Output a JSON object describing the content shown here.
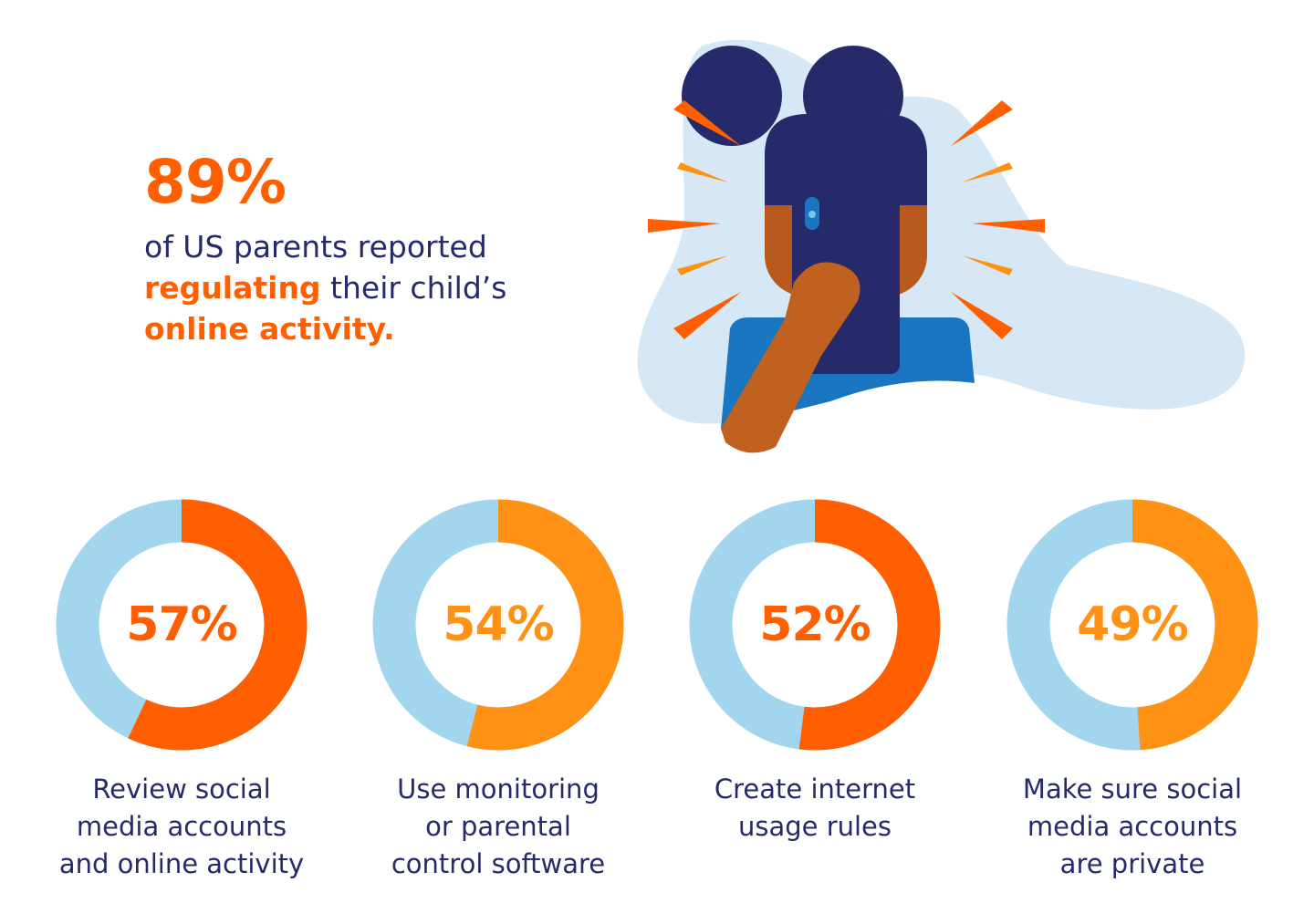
{
  "headline": {
    "value": "89%",
    "line1": "of US parents reported",
    "highlight1": "regulating",
    "line2_rest": " their child’s",
    "highlight2": "online activity."
  },
  "colors": {
    "orange": "#ff5f00",
    "amber": "#ff9214",
    "light_blue": "#a2d6ef",
    "navy": "#262a6b"
  },
  "chart_data": [
    {
      "type": "pie",
      "variant": "donut",
      "value": 57,
      "label": "57%",
      "caption": "Review social media accounts and online activity",
      "color": "#ff5f00"
    },
    {
      "type": "pie",
      "variant": "donut",
      "value": 54,
      "label": "54%",
      "caption": "Use monitoring or parental control software",
      "color": "#ff9214"
    },
    {
      "type": "pie",
      "variant": "donut",
      "value": 52,
      "label": "52%",
      "caption": "Create internet usage rules",
      "color": "#ff5f00"
    },
    {
      "type": "pie",
      "variant": "donut",
      "value": 49,
      "label": "49%",
      "caption": "Make sure social media accounts are private",
      "color": "#ff9214"
    }
  ],
  "captions_lines": [
    [
      "Review social",
      "media accounts",
      "and online activity"
    ],
    [
      "Use monitoring",
      "or parental",
      "control software"
    ],
    [
      "Create internet",
      "usage rules"
    ],
    [
      "Make sure social",
      "media accounts",
      "are private"
    ]
  ]
}
